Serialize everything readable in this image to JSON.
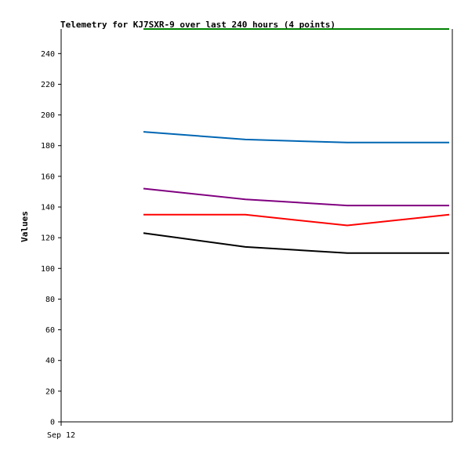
{
  "chart_data": {
    "type": "line",
    "title": "Telemetry for KJ7SXR-9 over last 240 hours (4 points)",
    "ylabel": "Values",
    "xlabel": "",
    "ylim": [
      0,
      256
    ],
    "yticks": [
      0,
      20,
      40,
      60,
      80,
      100,
      120,
      140,
      160,
      180,
      200,
      220,
      240
    ],
    "x_tick_labels": [
      "Sep 12"
    ],
    "grid": false,
    "x": [
      1,
      2,
      3,
      4
    ],
    "series": [
      {
        "color": "#008000",
        "values": [
          256,
          256,
          256,
          256
        ]
      },
      {
        "color": "#0066b3",
        "values": [
          189,
          184,
          182,
          182
        ]
      },
      {
        "color": "#800080",
        "values": [
          152,
          145,
          141,
          141
        ]
      },
      {
        "color": "#ff0000",
        "values": [
          135,
          135,
          128,
          135
        ]
      },
      {
        "color": "#000000",
        "values": [
          123,
          114,
          110,
          110
        ]
      }
    ]
  }
}
